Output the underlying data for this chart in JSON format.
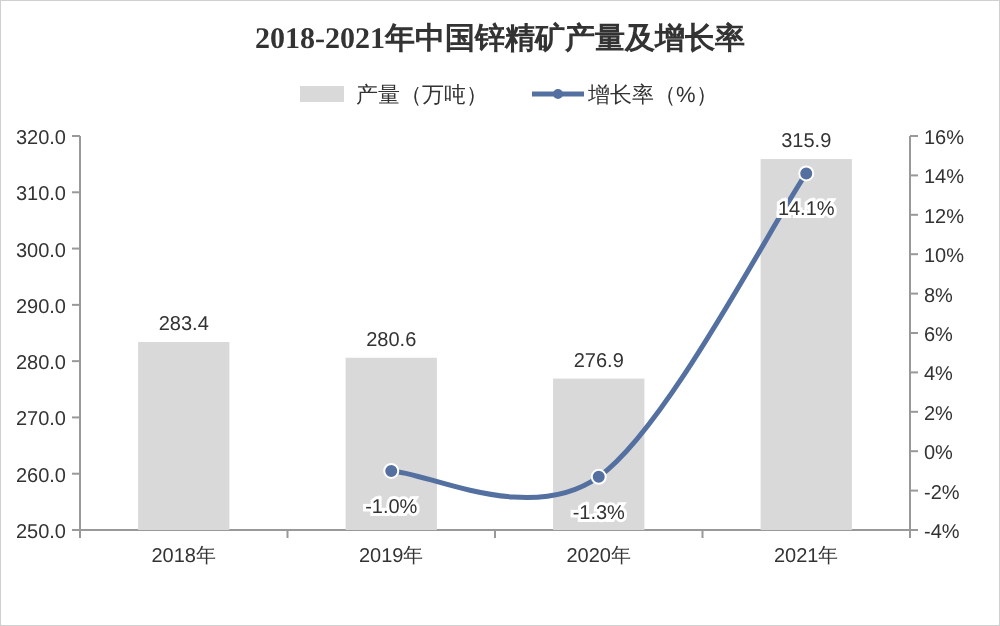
{
  "chart_data": {
    "type": "bar",
    "title": "2018-2021年中国锌精矿产量及增长率",
    "categories": [
      "2018年",
      "2019年",
      "2020年",
      "2021年"
    ],
    "series": [
      {
        "name": "产量（万吨）",
        "color": "#d9d9d9",
        "values": [
          283.4,
          280.6,
          276.9,
          315.9
        ],
        "value_labels": [
          "283.4",
          "280.6",
          "276.9",
          "315.9"
        ]
      },
      {
        "name": "增长率（%）",
        "type": "line",
        "axis": "y2",
        "color": "#5470a0",
        "marker": "circle",
        "values": [
          null,
          -1.0,
          -1.3,
          14.1
        ],
        "value_labels": [
          null,
          "-1.0%",
          "-1.3%",
          "14.1%"
        ]
      }
    ],
    "ylim": [
      250,
      320
    ],
    "yticks": [
      {
        "value": 250,
        "label": "250.0"
      },
      {
        "value": 260,
        "label": "260.0"
      },
      {
        "value": 270,
        "label": "270.0"
      },
      {
        "value": 280,
        "label": "280.0"
      },
      {
        "value": 290,
        "label": "290.0"
      },
      {
        "value": 300,
        "label": "300.0"
      },
      {
        "value": 310,
        "label": "310.0"
      },
      {
        "value": 320,
        "label": "320.0"
      }
    ],
    "y2lim": [
      -4,
      16
    ],
    "y2ticks": [
      {
        "value": -4,
        "label": "-4%"
      },
      {
        "value": -2,
        "label": "-2%"
      },
      {
        "value": 0,
        "label": "0%"
      },
      {
        "value": 2,
        "label": "2%"
      },
      {
        "value": 4,
        "label": "4%"
      },
      {
        "value": 6,
        "label": "6%"
      },
      {
        "value": 8,
        "label": "8%"
      },
      {
        "value": 10,
        "label": "10%"
      },
      {
        "value": 12,
        "label": "12%"
      },
      {
        "value": 14,
        "label": "14%"
      },
      {
        "value": 16,
        "label": "16%"
      }
    ],
    "legend": "top",
    "grid": false
  }
}
